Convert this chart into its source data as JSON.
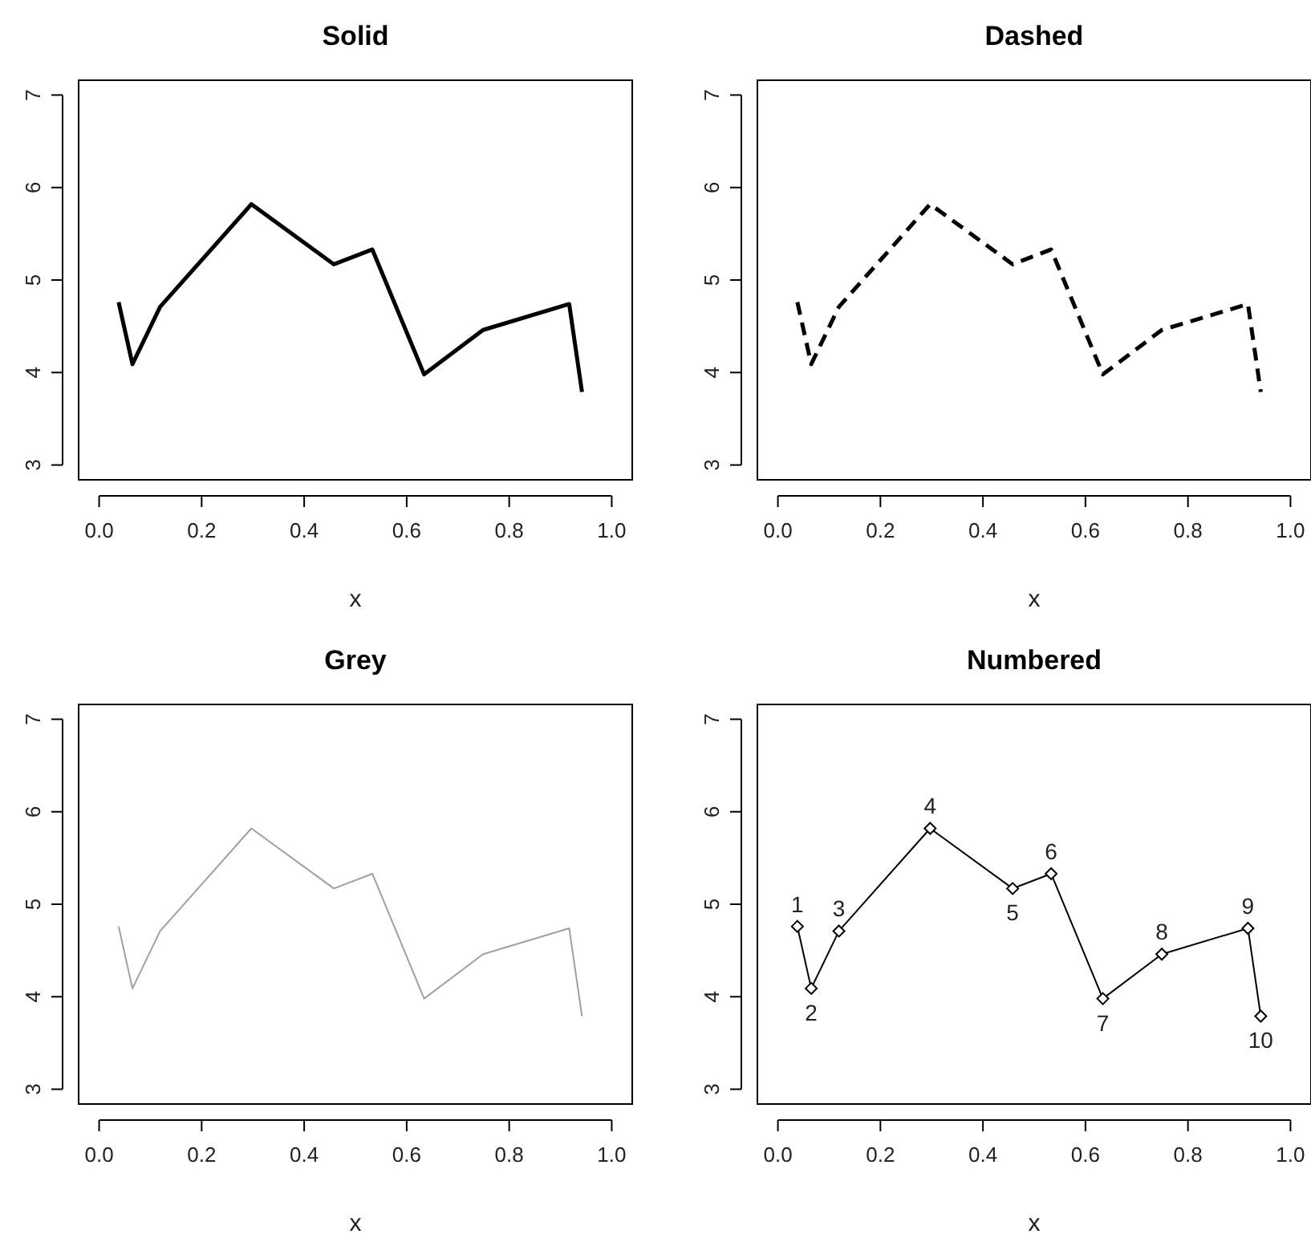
{
  "chart_data": [
    {
      "type": "line",
      "title": "Solid",
      "xlabel": "x",
      "x": [
        0.038,
        0.065,
        0.119,
        0.297,
        0.458,
        0.533,
        0.634,
        0.749,
        0.917,
        0.942
      ],
      "series": [
        {
          "color": "#000000",
          "values": [
            4.76,
            4.09,
            4.71,
            5.82,
            5.17,
            5.33,
            3.98,
            4.46,
            4.74,
            3.79
          ]
        }
      ],
      "xlim": [
        -0.04,
        1.04
      ],
      "ylim": [
        2.84,
        7.16
      ],
      "xticks": [
        {
          "value": 0,
          "label": "0.0"
        },
        {
          "value": 0.2,
          "label": "0.2"
        },
        {
          "value": 0.4,
          "label": "0.4"
        },
        {
          "value": 0.6,
          "label": "0.6"
        },
        {
          "value": 0.8,
          "label": "0.8"
        },
        {
          "value": 1,
          "label": "1.0"
        }
      ],
      "yticks": [
        3,
        4,
        5,
        6,
        7
      ],
      "line_style": "solid",
      "marker": "none"
    },
    {
      "type": "line",
      "title": "Dashed",
      "xlabel": "x",
      "x": [
        0.038,
        0.065,
        0.119,
        0.297,
        0.458,
        0.533,
        0.634,
        0.749,
        0.917,
        0.942
      ],
      "series": [
        {
          "color": "#000000",
          "values": [
            4.76,
            4.09,
            4.71,
            5.82,
            5.17,
            5.33,
            3.98,
            4.46,
            4.74,
            3.79
          ]
        }
      ],
      "xlim": [
        -0.04,
        1.04
      ],
      "ylim": [
        2.84,
        7.16
      ],
      "xticks": [
        {
          "value": 0,
          "label": "0.0"
        },
        {
          "value": 0.2,
          "label": "0.2"
        },
        {
          "value": 0.4,
          "label": "0.4"
        },
        {
          "value": 0.6,
          "label": "0.6"
        },
        {
          "value": 0.8,
          "label": "0.8"
        },
        {
          "value": 1,
          "label": "1.0"
        }
      ],
      "yticks": [
        3,
        4,
        5,
        6,
        7
      ],
      "line_style": "dashed",
      "marker": "none"
    },
    {
      "type": "line",
      "title": "Grey",
      "xlabel": "x",
      "x": [
        0.038,
        0.065,
        0.119,
        0.297,
        0.458,
        0.533,
        0.634,
        0.749,
        0.917,
        0.942
      ],
      "series": [
        {
          "color": "#a0a0a0",
          "values": [
            4.76,
            4.09,
            4.71,
            5.82,
            5.17,
            5.33,
            3.98,
            4.46,
            4.74,
            3.79
          ]
        }
      ],
      "xlim": [
        -0.04,
        1.04
      ],
      "ylim": [
        2.84,
        7.16
      ],
      "xticks": [
        {
          "value": 0,
          "label": "0.0"
        },
        {
          "value": 0.2,
          "label": "0.2"
        },
        {
          "value": 0.4,
          "label": "0.4"
        },
        {
          "value": 0.6,
          "label": "0.6"
        },
        {
          "value": 0.8,
          "label": "0.8"
        },
        {
          "value": 1,
          "label": "1.0"
        }
      ],
      "yticks": [
        3,
        4,
        5,
        6,
        7
      ],
      "line_style": "solid",
      "marker": "none"
    },
    {
      "type": "line",
      "title": "Numbered",
      "xlabel": "x",
      "x": [
        0.038,
        0.065,
        0.119,
        0.297,
        0.458,
        0.533,
        0.634,
        0.749,
        0.917,
        0.942
      ],
      "series": [
        {
          "color": "#000000",
          "values": [
            4.76,
            4.09,
            4.71,
            5.82,
            5.17,
            5.33,
            3.98,
            4.46,
            4.74,
            3.79
          ]
        }
      ],
      "xlim": [
        -0.04,
        1.04
      ],
      "ylim": [
        2.84,
        7.16
      ],
      "xticks": [
        {
          "value": 0,
          "label": "0.0"
        },
        {
          "value": 0.2,
          "label": "0.2"
        },
        {
          "value": 0.4,
          "label": "0.4"
        },
        {
          "value": 0.6,
          "label": "0.6"
        },
        {
          "value": 0.8,
          "label": "0.8"
        },
        {
          "value": 1,
          "label": "1.0"
        }
      ],
      "yticks": [
        3,
        4,
        5,
        6,
        7
      ],
      "line_style": "solid",
      "marker": "diamond",
      "annotations": [
        {
          "text": "1",
          "x": 0.038,
          "y": 4.76
        },
        {
          "text": "2",
          "x": 0.065,
          "y": 4.09
        },
        {
          "text": "3",
          "x": 0.119,
          "y": 4.71
        },
        {
          "text": "4",
          "x": 0.297,
          "y": 5.82
        },
        {
          "text": "5",
          "x": 0.458,
          "y": 5.17
        },
        {
          "text": "6",
          "x": 0.533,
          "y": 5.33
        },
        {
          "text": "7",
          "x": 0.634,
          "y": 3.98
        },
        {
          "text": "8",
          "x": 0.749,
          "y": 4.46
        },
        {
          "text": "9",
          "x": 0.917,
          "y": 4.74
        },
        {
          "text": "10",
          "x": 0.942,
          "y": 3.79
        }
      ]
    }
  ]
}
